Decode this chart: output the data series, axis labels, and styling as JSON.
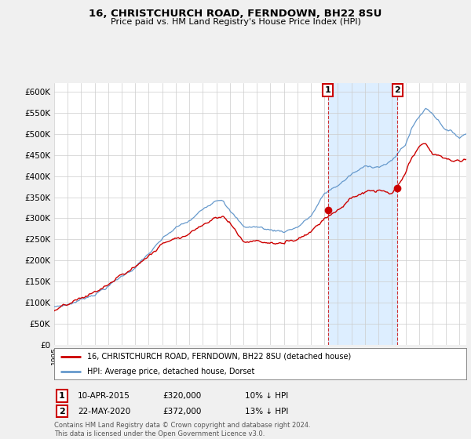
{
  "title": "16, CHRISTCHURCH ROAD, FERNDOWN, BH22 8SU",
  "subtitle": "Price paid vs. HM Land Registry's House Price Index (HPI)",
  "legend_label_red": "16, CHRISTCHURCH ROAD, FERNDOWN, BH22 8SU (detached house)",
  "legend_label_blue": "HPI: Average price, detached house, Dorset",
  "annotation1_date": "10-APR-2015",
  "annotation1_price": "£320,000",
  "annotation1_info": "10% ↓ HPI",
  "annotation2_date": "22-MAY-2020",
  "annotation2_price": "£372,000",
  "annotation2_info": "13% ↓ HPI",
  "footer": "Contains HM Land Registry data © Crown copyright and database right 2024.\nThis data is licensed under the Open Government Licence v3.0.",
  "ylim": [
    0,
    620000
  ],
  "yticks": [
    0,
    50000,
    100000,
    150000,
    200000,
    250000,
    300000,
    350000,
    400000,
    450000,
    500000,
    550000,
    600000
  ],
  "background_color": "#f0f0f0",
  "plot_bg_color": "#ffffff",
  "red_color": "#cc0000",
  "blue_color": "#6699cc",
  "shade_color": "#ddeeff",
  "anno_x1": 2015.25,
  "anno_y1": 320000,
  "anno_x2": 2020.4,
  "anno_y2": 372000,
  "xmin": 1995.0,
  "xmax": 2025.5
}
